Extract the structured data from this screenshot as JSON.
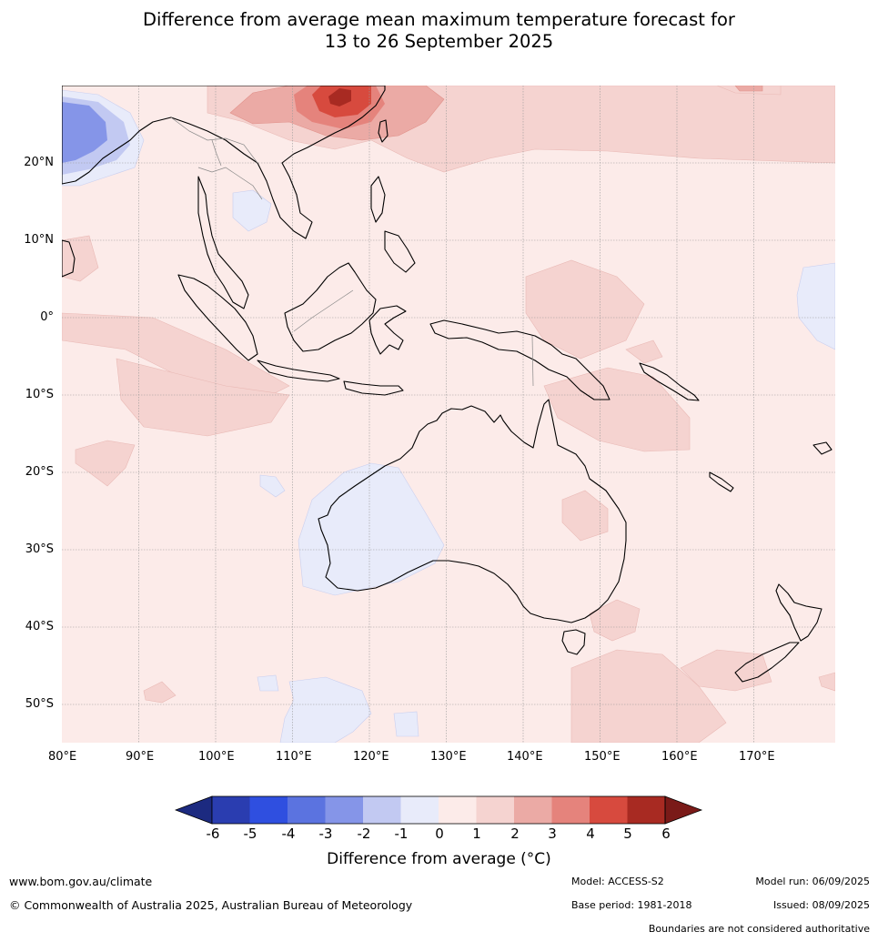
{
  "title_line1": "Difference from average mean maximum temperature forecast for",
  "title_line2": "13 to 26 September 2025",
  "lat_labels": [
    "20°N",
    "10°N",
    "0°",
    "10°S",
    "20°S",
    "30°S",
    "40°S",
    "50°S"
  ],
  "lon_labels": [
    "80°E",
    "90°E",
    "100°E",
    "110°E",
    "120°E",
    "130°E",
    "140°E",
    "150°E",
    "160°E",
    "170°E"
  ],
  "colorbar": {
    "ticks": [
      "-6",
      "-5",
      "-4",
      "-3",
      "-2",
      "-1",
      "0",
      "1",
      "2",
      "3",
      "4",
      "5",
      "6"
    ],
    "colors": [
      "#1c2a80",
      "#2a3db0",
      "#2f4fe0",
      "#5b73e0",
      "#8595e8",
      "#c2c9f2",
      "#e8ebfa",
      "#fcebe9",
      "#f5d3d0",
      "#ebaaa5",
      "#e5837c",
      "#d74a3e",
      "#a82a22",
      "#7a1a18"
    ],
    "label": "Difference from average (°C)"
  },
  "footer": {
    "url": "www.bom.gov.au/climate",
    "copyright": "© Commonwealth of Australia 2025, Australian Bureau of Meteorology",
    "model": "Model: ACCESS-S2",
    "base_period": "Base period: 1981-2018",
    "model_run": "Model run: 06/09/2025",
    "issued": "Issued: 08/09/2025",
    "disclaimer": "Boundaries are not considered authoritative"
  }
}
